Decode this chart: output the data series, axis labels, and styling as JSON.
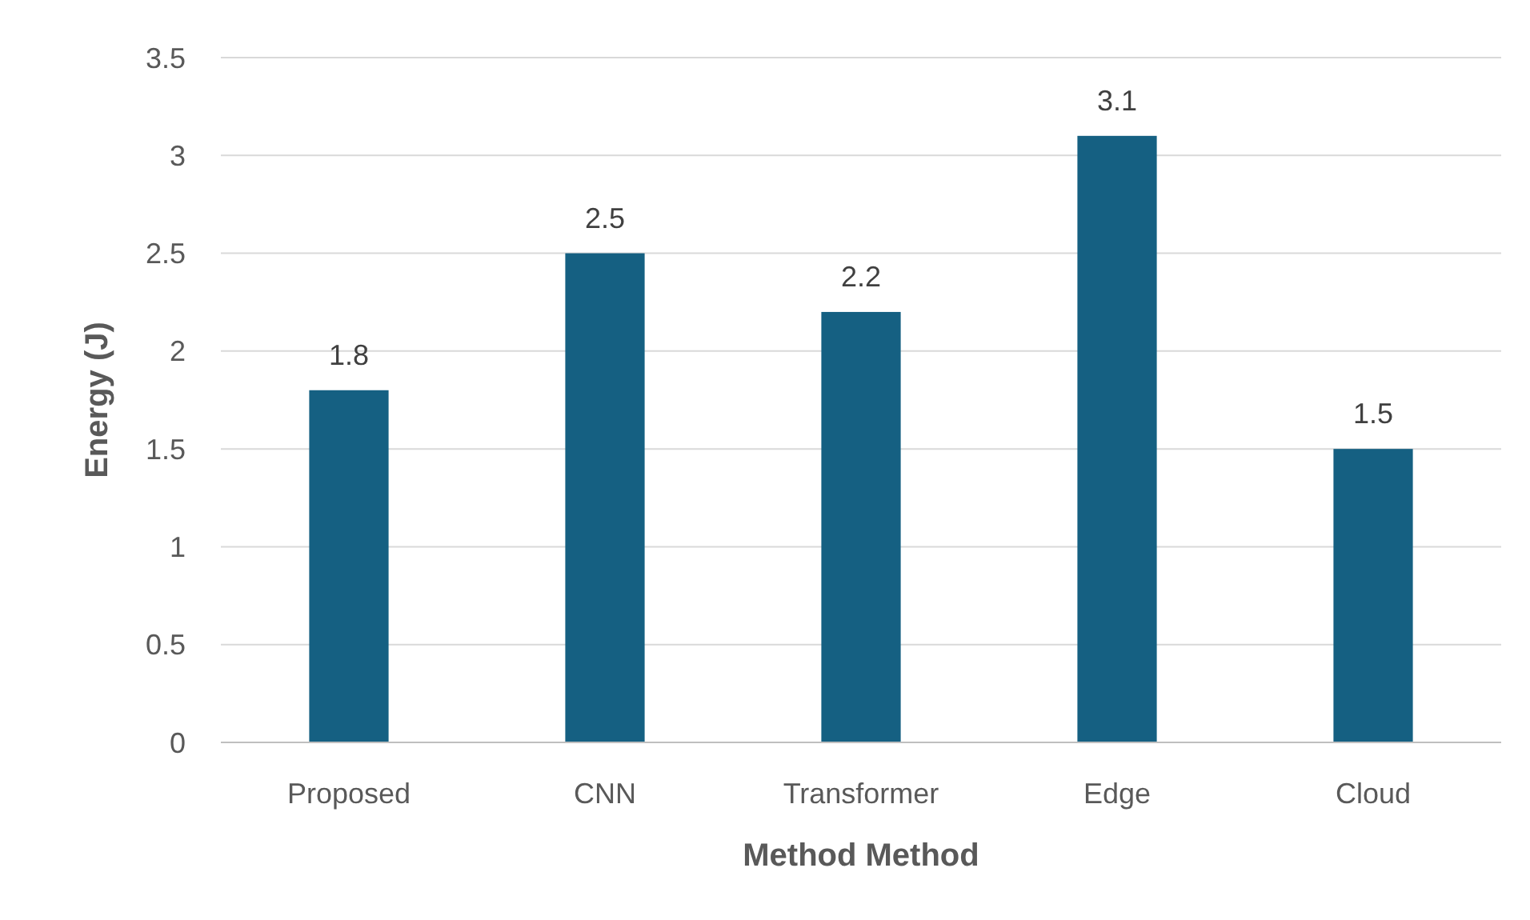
{
  "chart_data": {
    "type": "bar",
    "xlabel": "Method Method",
    "ylabel": "Energy (J)",
    "categories": [
      "Proposed",
      "CNN",
      "Transformer",
      "Edge",
      "Cloud"
    ],
    "values": [
      1.8,
      2.5,
      2.2,
      3.1,
      1.5
    ],
    "color": "#156082",
    "ylim": [
      0,
      3.5
    ],
    "yticks": [
      0,
      0.5,
      1,
      1.5,
      2,
      2.5,
      3,
      3.5
    ],
    "grid": "y",
    "data_labels": true
  }
}
